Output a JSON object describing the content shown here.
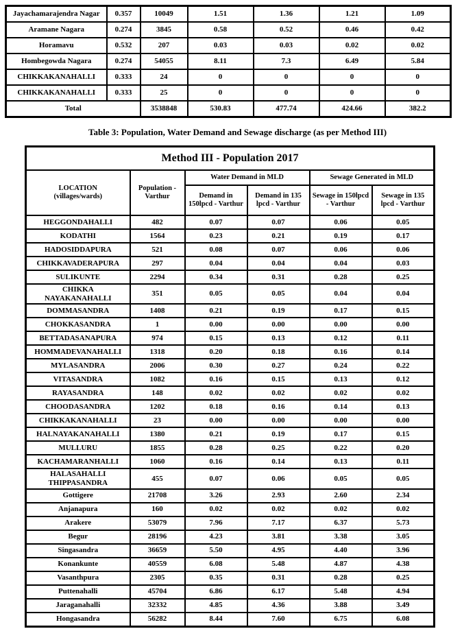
{
  "caption": "Table 3: Population, Water Demand and Sewage discharge (as per Method III)",
  "table1": {
    "rows": [
      {
        "name": "Jayachamarajendra Nagar",
        "rate": "0.357",
        "population": "10049",
        "d150": "1.51",
        "d135": "1.36",
        "s150": "1.21",
        "s135": "1.09"
      },
      {
        "name": "Aramane Nagara",
        "rate": "0.274",
        "population": "3845",
        "d150": "0.58",
        "d135": "0.52",
        "s150": "0.46",
        "s135": "0.42"
      },
      {
        "name": "Horamavu",
        "rate": "0.532",
        "population": "207",
        "d150": "0.03",
        "d135": "0.03",
        "s150": "0.02",
        "s135": "0.02"
      },
      {
        "name": "Hombegowda Nagara",
        "rate": "0.274",
        "population": "54055",
        "d150": "8.11",
        "d135": "7.3",
        "s150": "6.49",
        "s135": "5.84"
      },
      {
        "name": "CHIKKAKANAHALLI",
        "rate": "0.333",
        "population": "24",
        "d150": "0",
        "d135": "0",
        "s150": "0",
        "s135": "0"
      },
      {
        "name": "CHIKKAKANAHALLI",
        "rate": "0.333",
        "population": "25",
        "d150": "0",
        "d135": "0",
        "s150": "0",
        "s135": "0"
      }
    ],
    "total_row": {
      "label": "Total",
      "population": "3538848",
      "d150": "530.83",
      "d135": "477.74",
      "s150": "424.66",
      "s135": "382.2"
    }
  },
  "table2": {
    "title": "Method III - Population 2017",
    "headers": {
      "location_line1": "LOCATION",
      "location_line2": "(villages/wards)",
      "population": "Population - Varthur",
      "water_group": "Water Demand in MLD",
      "sewage_group": "Sewage Generated in MLD",
      "d150": "Demand in 150lpcd - Varthur",
      "d135": "Demand in 135 lpcd - Varthur",
      "s150": "Sewage in 150lpcd - Varthur",
      "s135": "Sewage in 135 lpcd - Varthur"
    },
    "rows": [
      {
        "name": "HEGGONDAHALLI",
        "population": "482",
        "d150": "0.07",
        "d135": "0.07",
        "s150": "0.06",
        "s135": "0.05"
      },
      {
        "name": "KODATHI",
        "population": "1564",
        "d150": "0.23",
        "d135": "0.21",
        "s150": "0.19",
        "s135": "0.17"
      },
      {
        "name": "HADOSIDDAPURA",
        "population": "521",
        "d150": "0.08",
        "d135": "0.07",
        "s150": "0.06",
        "s135": "0.06"
      },
      {
        "name": "CHIKKAVADERAPURA",
        "population": "297",
        "d150": "0.04",
        "d135": "0.04",
        "s150": "0.04",
        "s135": "0.03"
      },
      {
        "name": "SULIKUNTE",
        "population": "2294",
        "d150": "0.34",
        "d135": "0.31",
        "s150": "0.28",
        "s135": "0.25"
      },
      {
        "name": "CHIKKA NAYAKANAHALLI",
        "population": "351",
        "d150": "0.05",
        "d135": "0.05",
        "s150": "0.04",
        "s135": "0.04"
      },
      {
        "name": "DOMMASANDRA",
        "population": "1408",
        "d150": "0.21",
        "d135": "0.19",
        "s150": "0.17",
        "s135": "0.15"
      },
      {
        "name": "CHOKKASANDRA",
        "population": "1",
        "d150": "0.00",
        "d135": "0.00",
        "s150": "0.00",
        "s135": "0.00"
      },
      {
        "name": "BETTADASANAPURA",
        "population": "974",
        "d150": "0.15",
        "d135": "0.13",
        "s150": "0.12",
        "s135": "0.11"
      },
      {
        "name": "HOMMADEVANAHALLI",
        "population": "1318",
        "d150": "0.20",
        "d135": "0.18",
        "s150": "0.16",
        "s135": "0.14"
      },
      {
        "name": "MYLASANDRA",
        "population": "2006",
        "d150": "0.30",
        "d135": "0.27",
        "s150": "0.24",
        "s135": "0.22"
      },
      {
        "name": "VITASANDRA",
        "population": "1082",
        "d150": "0.16",
        "d135": "0.15",
        "s150": "0.13",
        "s135": "0.12"
      },
      {
        "name": "RAYASANDRA",
        "population": "148",
        "d150": "0.02",
        "d135": "0.02",
        "s150": "0.02",
        "s135": "0.02"
      },
      {
        "name": "CHOODASANDRA",
        "population": "1202",
        "d150": "0.18",
        "d135": "0.16",
        "s150": "0.14",
        "s135": "0.13"
      },
      {
        "name": "CHIKKAKANAHALLI",
        "population": "23",
        "d150": "0.00",
        "d135": "0.00",
        "s150": "0.00",
        "s135": "0.00"
      },
      {
        "name": "HALNAYAKANAHALLI",
        "population": "1380",
        "d150": "0.21",
        "d135": "0.19",
        "s150": "0.17",
        "s135": "0.15"
      },
      {
        "name": "MULLURU",
        "population": "1855",
        "d150": "0.28",
        "d135": "0.25",
        "s150": "0.22",
        "s135": "0.20"
      },
      {
        "name": "KACHAMARANHALLI",
        "population": "1060",
        "d150": "0.16",
        "d135": "0.14",
        "s150": "0.13",
        "s135": "0.11"
      },
      {
        "name": "HALASAHALLI THIPPASANDRA",
        "population": "455",
        "d150": "0.07",
        "d135": "0.06",
        "s150": "0.05",
        "s135": "0.05"
      },
      {
        "name": "Gottigere",
        "population": "21708",
        "d150": "3.26",
        "d135": "2.93",
        "s150": "2.60",
        "s135": "2.34"
      },
      {
        "name": "Anjanapura",
        "population": "160",
        "d150": "0.02",
        "d135": "0.02",
        "s150": "0.02",
        "s135": "0.02"
      },
      {
        "name": "Arakere",
        "population": "53079",
        "d150": "7.96",
        "d135": "7.17",
        "s150": "6.37",
        "s135": "5.73"
      },
      {
        "name": "Begur",
        "population": "28196",
        "d150": "4.23",
        "d135": "3.81",
        "s150": "3.38",
        "s135": "3.05"
      },
      {
        "name": "Singasandra",
        "population": "36659",
        "d150": "5.50",
        "d135": "4.95",
        "s150": "4.40",
        "s135": "3.96"
      },
      {
        "name": "Konankunte",
        "population": "40559",
        "d150": "6.08",
        "d135": "5.48",
        "s150": "4.87",
        "s135": "4.38"
      },
      {
        "name": "Vasanthpura",
        "population": "2305",
        "d150": "0.35",
        "d135": "0.31",
        "s150": "0.28",
        "s135": "0.25"
      },
      {
        "name": "Puttenahalli",
        "population": "45704",
        "d150": "6.86",
        "d135": "6.17",
        "s150": "5.48",
        "s135": "4.94"
      },
      {
        "name": "Jaraganahalli",
        "population": "32332",
        "d150": "4.85",
        "d135": "4.36",
        "s150": "3.88",
        "s135": "3.49"
      },
      {
        "name": "Hongasandra",
        "population": "56282",
        "d150": "8.44",
        "d135": "7.60",
        "s150": "6.75",
        "s135": "6.08"
      }
    ]
  }
}
